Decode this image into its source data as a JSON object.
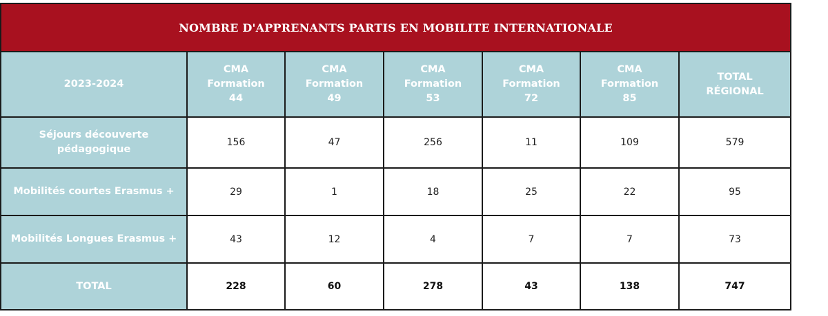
{
  "table": {
    "title": "NOMBRE D'APPRENANTS PARTIS EN MOBILITE INTERNATIONALE",
    "corner_label": "2023-2024",
    "columns": [
      {
        "line1": "CMA",
        "line2": "Formation",
        "line3": "44"
      },
      {
        "line1": "CMA",
        "line2": "Formation",
        "line3": "49"
      },
      {
        "line1": "CMA",
        "line2": "Formation",
        "line3": "53"
      },
      {
        "line1": "CMA",
        "line2": "Formation",
        "line3": "72"
      },
      {
        "line1": "CMA",
        "line2": "Formation",
        "line3": "85"
      },
      {
        "line1": "TOTAL",
        "line2": "RÉGIONAL",
        "line3": ""
      }
    ],
    "rows": [
      {
        "label_line1": "Séjours découverte",
        "label_line2": "pédagogique",
        "values": [
          "156",
          "47",
          "256",
          "11",
          "109",
          "579"
        ]
      },
      {
        "label_line1": "Mobilités courtes Erasmus +",
        "label_line2": "",
        "values": [
          "29",
          "1",
          "18",
          "25",
          "22",
          "95"
        ]
      },
      {
        "label_line1": "Mobilités Longues Erasmus +",
        "label_line2": "",
        "values": [
          "43",
          "12",
          "4",
          "7",
          "7",
          "73"
        ]
      },
      {
        "label_line1": "TOTAL",
        "label_line2": "",
        "values": [
          "228",
          "60",
          "278",
          "43",
          "138",
          "747"
        ]
      }
    ]
  },
  "colors": {
    "title_bg": "#a8111f",
    "header_bg": "#aed3d9",
    "header_text": "#ffffff",
    "border": "#1a1a1a"
  }
}
